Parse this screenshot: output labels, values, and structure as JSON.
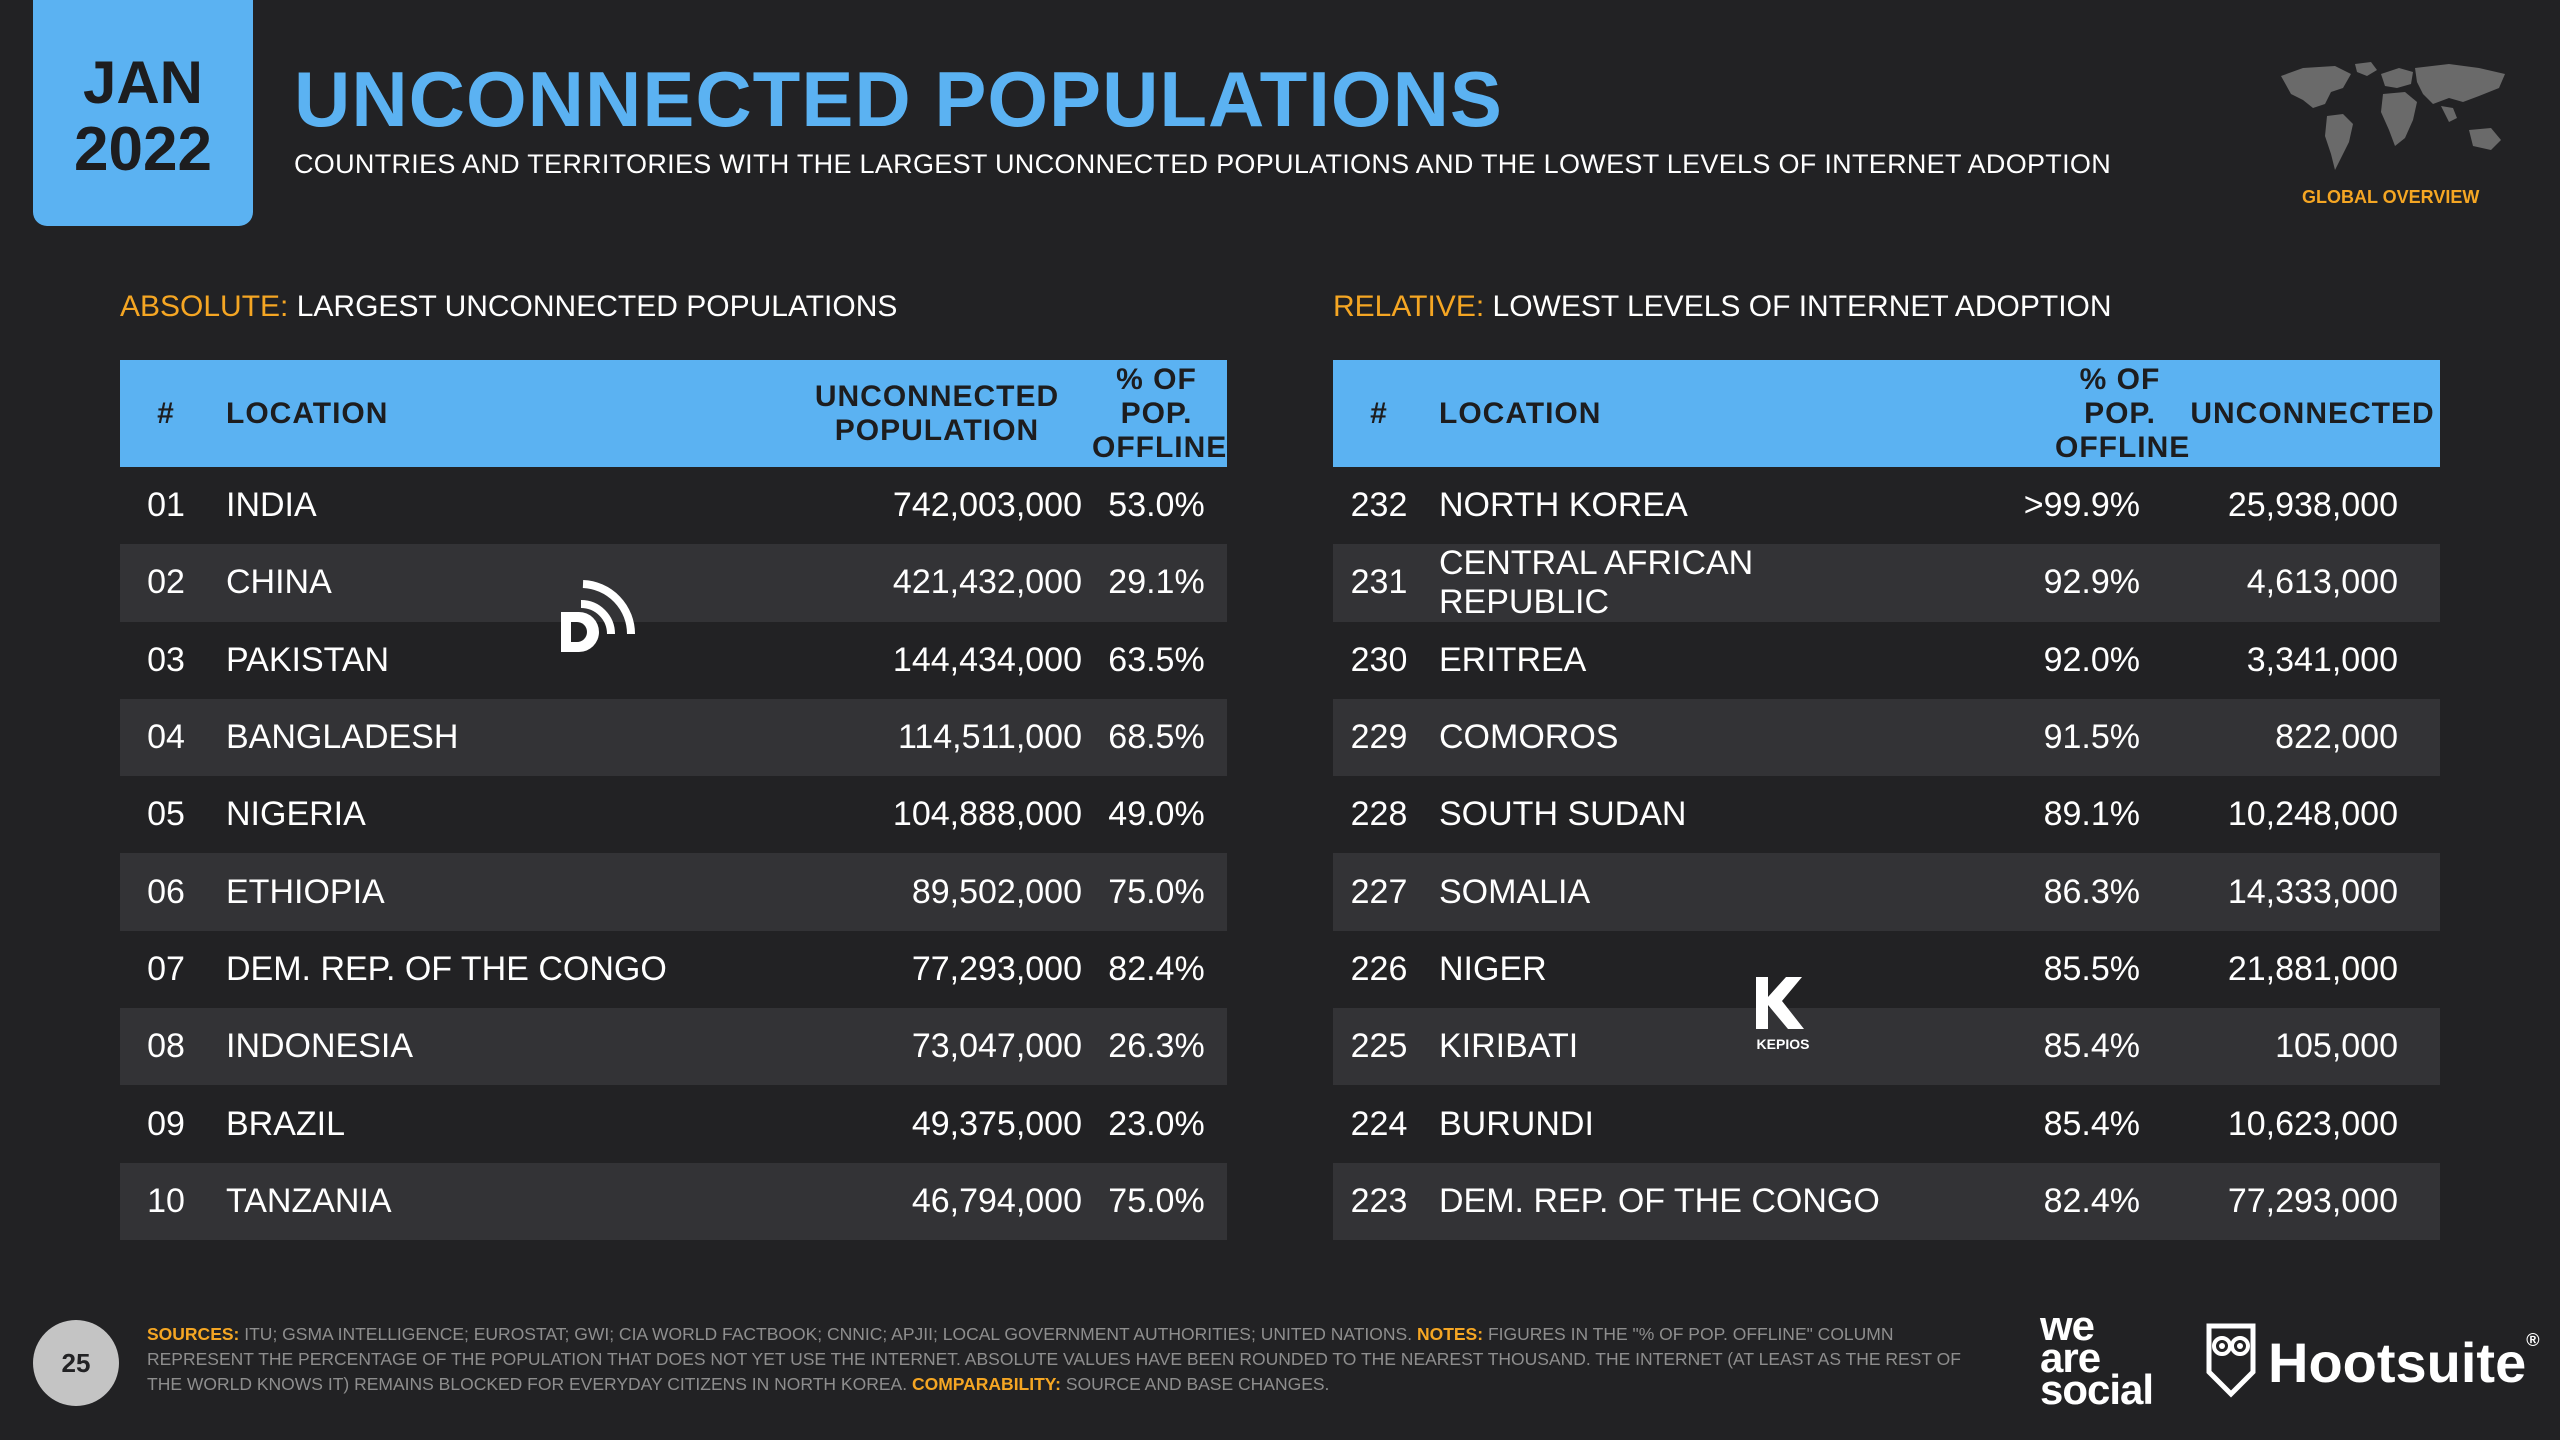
{
  "badge": {
    "month": "JAN",
    "year": "2022"
  },
  "header": {
    "title": "UNCONNECTED POPULATIONS",
    "subtitle": "COUNTRIES AND TERRITORIES WITH THE LARGEST UNCONNECTED POPULATIONS AND THE LOWEST LEVELS OF INTERNET ADOPTION",
    "overview_label": "GLOBAL OVERVIEW"
  },
  "colors": {
    "accent_blue": "#5bb2f2",
    "accent_orange": "#f5a623",
    "background": "#222224",
    "row_alt": "#333336"
  },
  "absolute": {
    "label_key": "ABSOLUTE:",
    "label_text": "LARGEST UNCONNECTED POPULATIONS",
    "headers": {
      "num": "#",
      "location": "LOCATION",
      "pop_line1": "UNCONNECTED",
      "pop_line2": "POPULATION",
      "pct_line1": "% OF POP.",
      "pct_line2": "OFFLINE"
    },
    "rows": [
      {
        "num": "01",
        "location": "INDIA",
        "population": "742,003,000",
        "pct": "53.0%"
      },
      {
        "num": "02",
        "location": "CHINA",
        "population": "421,432,000",
        "pct": "29.1%"
      },
      {
        "num": "03",
        "location": "PAKISTAN",
        "population": "144,434,000",
        "pct": "63.5%"
      },
      {
        "num": "04",
        "location": "BANGLADESH",
        "population": "114,511,000",
        "pct": "68.5%"
      },
      {
        "num": "05",
        "location": "NIGERIA",
        "population": "104,888,000",
        "pct": "49.0%"
      },
      {
        "num": "06",
        "location": "ETHIOPIA",
        "population": "89,502,000",
        "pct": "75.0%"
      },
      {
        "num": "07",
        "location": "DEM. REP. OF THE CONGO",
        "population": "77,293,000",
        "pct": "82.4%"
      },
      {
        "num": "08",
        "location": "INDONESIA",
        "population": "73,047,000",
        "pct": "26.3%"
      },
      {
        "num": "09",
        "location": "BRAZIL",
        "population": "49,375,000",
        "pct": "23.0%"
      },
      {
        "num": "10",
        "location": "TANZANIA",
        "population": "46,794,000",
        "pct": "75.0%"
      }
    ]
  },
  "relative": {
    "label_key": "RELATIVE:",
    "label_text": "LOWEST LEVELS OF INTERNET ADOPTION",
    "headers": {
      "num": "#",
      "location": "LOCATION",
      "pct_line1": "% OF POP.",
      "pct_line2": "OFFLINE",
      "unconnected": "UNCONNECTED"
    },
    "rows": [
      {
        "num": "232",
        "location": "NORTH KOREA",
        "pct": ">99.9%",
        "unconnected": "25,938,000"
      },
      {
        "num": "231",
        "location": "CENTRAL AFRICAN REPUBLIC",
        "pct": "92.9%",
        "unconnected": "4,613,000"
      },
      {
        "num": "230",
        "location": "ERITREA",
        "pct": "92.0%",
        "unconnected": "3,341,000"
      },
      {
        "num": "229",
        "location": "COMOROS",
        "pct": "91.5%",
        "unconnected": "822,000"
      },
      {
        "num": "228",
        "location": "SOUTH SUDAN",
        "pct": "89.1%",
        "unconnected": "10,248,000"
      },
      {
        "num": "227",
        "location": "SOMALIA",
        "pct": "86.3%",
        "unconnected": "14,333,000"
      },
      {
        "num": "226",
        "location": "NIGER",
        "pct": "85.5%",
        "unconnected": "21,881,000"
      },
      {
        "num": "225",
        "location": "KIRIBATI",
        "pct": "85.4%",
        "unconnected": "105,000"
      },
      {
        "num": "224",
        "location": "BURUNDI",
        "pct": "85.4%",
        "unconnected": "10,623,000"
      },
      {
        "num": "223",
        "location": "DEM. REP. OF THE CONGO",
        "pct": "82.4%",
        "unconnected": "77,293,000"
      }
    ]
  },
  "footer": {
    "page_number": "25",
    "sources_key": "SOURCES:",
    "sources_text": "ITU; GSMA INTELLIGENCE; EUROSTAT; GWI; CIA WORLD FACTBOOK; CNNIC; APJII; LOCAL GOVERNMENT AUTHORITIES; UNITED NATIONS.",
    "notes_key": "NOTES:",
    "notes_text": "FIGURES IN THE \"% OF POP. OFFLINE\" COLUMN REPRESENT THE PERCENTAGE OF THE POPULATION THAT DOES NOT YET USE THE INTERNET. ABSOLUTE VALUES HAVE BEEN ROUNDED TO THE NEAREST THOUSAND. THE INTERNET (AT LEAST AS THE REST OF THE WORLD KNOWS IT) REMAINS BLOCKED FOR EVERYDAY CITIZENS IN NORTH KOREA.",
    "comparability_key": "COMPARABILITY:",
    "comparability_text": "SOURCE AND BASE CHANGES.",
    "brand1_line1": "we",
    "brand1_line2": "are",
    "brand1_line3": "social",
    "brand2": "Hootsuite",
    "brand2_mark": "®",
    "watermark_kepios": "KEPIOS"
  }
}
